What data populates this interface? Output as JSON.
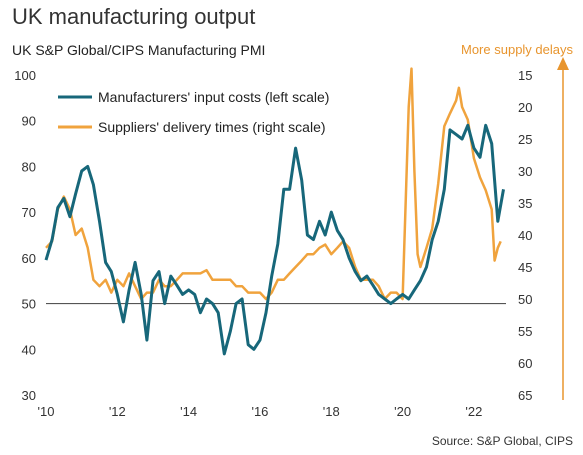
{
  "title": "UK manufacturing output",
  "subtitle": "UK S&P Global/CIPS Manufacturing PMI",
  "right_axis_note": "More supply delays",
  "source": "Source: S&P Global, CIPS",
  "colors": {
    "input_costs": "#17677a",
    "delivery_times": "#f0a33d",
    "arrow": "#e8952e",
    "baseline": "#555555"
  },
  "chart_data": {
    "type": "line",
    "title": "UK manufacturing output",
    "subtitle": "UK S&P Global/CIPS Manufacturing PMI",
    "xlabel": "",
    "ylabel": "",
    "x_ticks": [
      "'10",
      "'12",
      "'14",
      "'16",
      "'18",
      "'20",
      "'22"
    ],
    "x_range": [
      2010.0,
      2022.9
    ],
    "left_axis": {
      "ylim": [
        30,
        100
      ],
      "ticks": [
        30,
        40,
        50,
        60,
        70,
        80,
        90,
        100
      ]
    },
    "right_axis": {
      "ylim": [
        65,
        15
      ],
      "inverted": true,
      "ticks": [
        15,
        20,
        25,
        30,
        35,
        40,
        45,
        50,
        55,
        60,
        65
      ]
    },
    "reference_line": 50,
    "legend_position": "top-left",
    "series": [
      {
        "name": "Manufacturers' input costs (left scale)",
        "axis": "left",
        "x": [
          2010.0,
          2010.17,
          2010.33,
          2010.5,
          2010.67,
          2010.83,
          2011.0,
          2011.17,
          2011.33,
          2011.5,
          2011.67,
          2011.83,
          2012.0,
          2012.17,
          2012.33,
          2012.5,
          2012.67,
          2012.83,
          2013.0,
          2013.17,
          2013.33,
          2013.5,
          2013.67,
          2013.83,
          2014.0,
          2014.17,
          2014.33,
          2014.5,
          2014.67,
          2014.83,
          2015.0,
          2015.17,
          2015.33,
          2015.5,
          2015.67,
          2015.83,
          2016.0,
          2016.17,
          2016.33,
          2016.5,
          2016.67,
          2016.83,
          2017.0,
          2017.17,
          2017.33,
          2017.5,
          2017.67,
          2017.83,
          2018.0,
          2018.17,
          2018.33,
          2018.5,
          2018.67,
          2018.83,
          2019.0,
          2019.17,
          2019.33,
          2019.5,
          2019.67,
          2019.83,
          2020.0,
          2020.17,
          2020.33,
          2020.5,
          2020.67,
          2020.83,
          2021.0,
          2021.17,
          2021.33,
          2021.5,
          2021.67,
          2021.83,
          2022.0,
          2022.17,
          2022.33,
          2022.5,
          2022.67,
          2022.83
        ],
        "values": [
          59.5,
          64,
          71,
          73,
          69,
          74,
          79,
          80,
          76,
          68,
          59,
          57,
          52,
          46,
          53,
          59,
          52,
          42,
          55,
          57,
          50,
          56,
          54,
          52,
          53,
          52,
          48,
          51,
          50,
          48,
          39,
          44,
          50,
          51,
          41,
          40,
          42,
          48,
          56,
          63,
          75,
          75,
          84,
          77,
          65,
          64,
          68,
          65,
          70,
          66,
          64,
          60,
          57,
          55,
          56,
          54,
          52,
          51,
          50,
          51,
          52,
          51,
          53,
          55,
          58,
          64,
          68,
          75,
          88,
          87,
          86,
          89,
          84,
          82,
          89,
          85,
          68,
          75
        ]
      },
      {
        "name": "Suppliers' delivery times (right scale)",
        "axis": "right",
        "x": [
          2010.0,
          2010.17,
          2010.33,
          2010.5,
          2010.67,
          2010.83,
          2011.0,
          2011.17,
          2011.33,
          2011.5,
          2011.67,
          2011.83,
          2012.0,
          2012.17,
          2012.33,
          2012.5,
          2012.67,
          2012.83,
          2013.0,
          2013.17,
          2013.33,
          2013.5,
          2013.67,
          2013.83,
          2014.0,
          2014.17,
          2014.33,
          2014.5,
          2014.67,
          2014.83,
          2015.0,
          2015.17,
          2015.33,
          2015.5,
          2015.67,
          2015.83,
          2016.0,
          2016.17,
          2016.33,
          2016.5,
          2016.67,
          2016.83,
          2017.0,
          2017.17,
          2017.33,
          2017.5,
          2017.67,
          2017.83,
          2018.0,
          2018.17,
          2018.33,
          2018.5,
          2018.67,
          2018.83,
          2019.0,
          2019.17,
          2019.33,
          2019.5,
          2019.67,
          2019.83,
          2020.0,
          2020.17,
          2020.25,
          2020.33,
          2020.42,
          2020.5,
          2020.67,
          2020.83,
          2021.0,
          2021.17,
          2021.33,
          2021.5,
          2021.58,
          2021.67,
          2021.83,
          2022.0,
          2022.17,
          2022.33,
          2022.5,
          2022.58,
          2022.67,
          2022.75
        ],
        "values": [
          42,
          41,
          36,
          34,
          36,
          40,
          39,
          42,
          47,
          48,
          47,
          49,
          47,
          48,
          46,
          48,
          50,
          49,
          49,
          47,
          48,
          48,
          47,
          46,
          46,
          46,
          46,
          45.5,
          47,
          47,
          47,
          47,
          48,
          48,
          49,
          49,
          49,
          50,
          49,
          47,
          47,
          46,
          45,
          44,
          43,
          43,
          42,
          41.5,
          43,
          42,
          41,
          42,
          45,
          47,
          47,
          47,
          48,
          50,
          49,
          49,
          50,
          20,
          14,
          30,
          43,
          45,
          42,
          39,
          32,
          23,
          21,
          19,
          17,
          20,
          22,
          28,
          31,
          33,
          36,
          44,
          42,
          41
        ]
      }
    ]
  }
}
